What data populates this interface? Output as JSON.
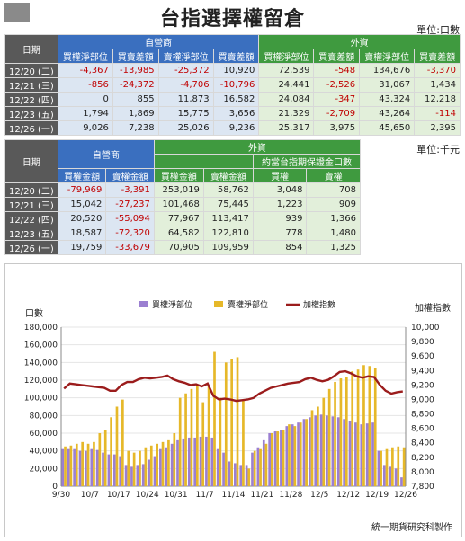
{
  "title": "台指選擇權留倉",
  "unit1": "單位:口數",
  "unit2": "單位:千元",
  "table1": {
    "date_header": "日期",
    "group1": "自營商",
    "group2": "外資",
    "cols": [
      "買權淨部位",
      "買賣差額",
      "賣權淨部位",
      "買賣差額",
      "買權淨部位",
      "買賣差額",
      "賣權淨部位",
      "買賣差額"
    ],
    "rows": [
      {
        "date": "12/20 (二)",
        "cells": [
          "-4,367",
          "-13,985",
          "-25,372",
          "10,920",
          "72,539",
          "-548",
          "134,676",
          "-3,370"
        ]
      },
      {
        "date": "12/21 (三)",
        "cells": [
          "-856",
          "-24,372",
          "-4,706",
          "-10,796",
          "24,441",
          "-2,526",
          "31,067",
          "1,434"
        ]
      },
      {
        "date": "12/22 (四)",
        "cells": [
          "0",
          "855",
          "11,873",
          "16,582",
          "24,084",
          "-347",
          "43,324",
          "12,218"
        ]
      },
      {
        "date": "12/23 (五)",
        "cells": [
          "1,794",
          "1,869",
          "15,775",
          "3,656",
          "21,329",
          "-2,709",
          "43,264",
          "-114"
        ]
      },
      {
        "date": "12/26 (一)",
        "cells": [
          "9,026",
          "7,238",
          "25,026",
          "9,236",
          "25,317",
          "3,975",
          "45,650",
          "2,395"
        ]
      }
    ]
  },
  "table2": {
    "date_header": "日期",
    "group1": "自營商",
    "group2": "外資",
    "subgroup": "約當台指期保證金口數",
    "cols": [
      "買權金額",
      "賣權金額",
      "買權金額",
      "賣權金額",
      "買權",
      "賣權"
    ],
    "rows": [
      {
        "date": "12/20 (二)",
        "cells": [
          "-79,969",
          "-3,391",
          "253,019",
          "58,762",
          "3,048",
          "708"
        ]
      },
      {
        "date": "12/21 (三)",
        "cells": [
          "15,042",
          "-27,237",
          "101,468",
          "75,445",
          "1,223",
          "909"
        ]
      },
      {
        "date": "12/22 (四)",
        "cells": [
          "20,520",
          "-55,094",
          "77,967",
          "113,417",
          "939",
          "1,366"
        ]
      },
      {
        "date": "12/23 (五)",
        "cells": [
          "18,587",
          "-72,320",
          "64,582",
          "122,810",
          "778",
          "1,480"
        ]
      },
      {
        "date": "12/26 (一)",
        "cells": [
          "19,759",
          "-33,679",
          "70,905",
          "109,959",
          "854",
          "1,325"
        ]
      }
    ]
  },
  "colors": {
    "call": "#9b7fd1",
    "put": "#e6b829",
    "index": "#9b1c1c",
    "neg": "#c00000"
  },
  "chart_data": {
    "type": "bar",
    "ylabel": "口數",
    "y2label": "加權指數",
    "ylim": [
      0,
      180000
    ],
    "y2lim": [
      7800,
      10000
    ],
    "yticks": [
      "0",
      "20,000",
      "40,000",
      "60,000",
      "80,000",
      "100,000",
      "120,000",
      "140,000",
      "160,000",
      "180,000"
    ],
    "y2ticks": [
      "7,800",
      "8,000",
      "8,200",
      "8,400",
      "8,600",
      "8,800",
      "9,000",
      "9,200",
      "9,400",
      "9,600",
      "9,800",
      "10,000"
    ],
    "xticklabels": [
      "9/30",
      "10/7",
      "10/17",
      "10/24",
      "10/31",
      "11/7",
      "11/14",
      "11/21",
      "11/28",
      "12/5",
      "12/12",
      "12/19",
      "12/26"
    ],
    "legend": [
      "買權淨部位",
      "賣權淨部位",
      "加權指數"
    ],
    "legend_position": "top",
    "series": [
      {
        "name": "買權淨部位",
        "values": [
          42000,
          42000,
          42000,
          40000,
          40000,
          42000,
          41000,
          38000,
          36000,
          36000,
          34000,
          24000,
          22000,
          24000,
          25000,
          30000,
          34000,
          42000,
          44000,
          48000,
          52000,
          54000,
          55000,
          55000,
          56000,
          56000,
          55000,
          42000,
          38000,
          28000,
          26000,
          24000,
          24000,
          38000,
          44000,
          52000,
          60000,
          62000,
          64000,
          68000,
          70000,
          72000,
          76000,
          78000,
          80000,
          81000,
          80000,
          79000,
          78000,
          76000,
          74000,
          72000,
          70000,
          71000,
          72000,
          40000,
          24000,
          22000,
          20000,
          10000
        ]
      },
      {
        "name": "賣權淨部位",
        "values": [
          45000,
          46000,
          48000,
          50000,
          48000,
          50000,
          60000,
          64000,
          78000,
          90000,
          98000,
          40000,
          38000,
          40000,
          44000,
          46000,
          48000,
          50000,
          52000,
          60000,
          100000,
          105000,
          110000,
          115000,
          95000,
          113000,
          152000,
          100000,
          140000,
          144000,
          146000,
          98000,
          20000,
          40000,
          42000,
          48000,
          60000,
          62000,
          64000,
          70000,
          68000,
          72000,
          76000,
          86000,
          90000,
          100000,
          110000,
          118000,
          122000,
          124000,
          130000,
          132000,
          137000,
          136000,
          134000,
          40000,
          42000,
          44000,
          45000,
          44000
        ]
      },
      {
        "name": "加權指數",
        "values": [
          9150,
          9220,
          9210,
          9200,
          9190,
          9180,
          9170,
          9160,
          9120,
          9120,
          9200,
          9240,
          9240,
          9280,
          9300,
          9290,
          9300,
          9310,
          9330,
          9280,
          9250,
          9230,
          9200,
          9210,
          9180,
          9220,
          9050,
          9000,
          9010,
          9000,
          8980,
          8990,
          9000,
          9020,
          9080,
          9120,
          9160,
          9180,
          9200,
          9220,
          9230,
          9240,
          9280,
          9300,
          9270,
          9250,
          9270,
          9320,
          9380,
          9390,
          9360,
          9320,
          9300,
          9320,
          9310,
          9200,
          9120,
          9080,
          9100,
          9110
        ]
      }
    ]
  },
  "footer": "統一期貨研究科製作"
}
